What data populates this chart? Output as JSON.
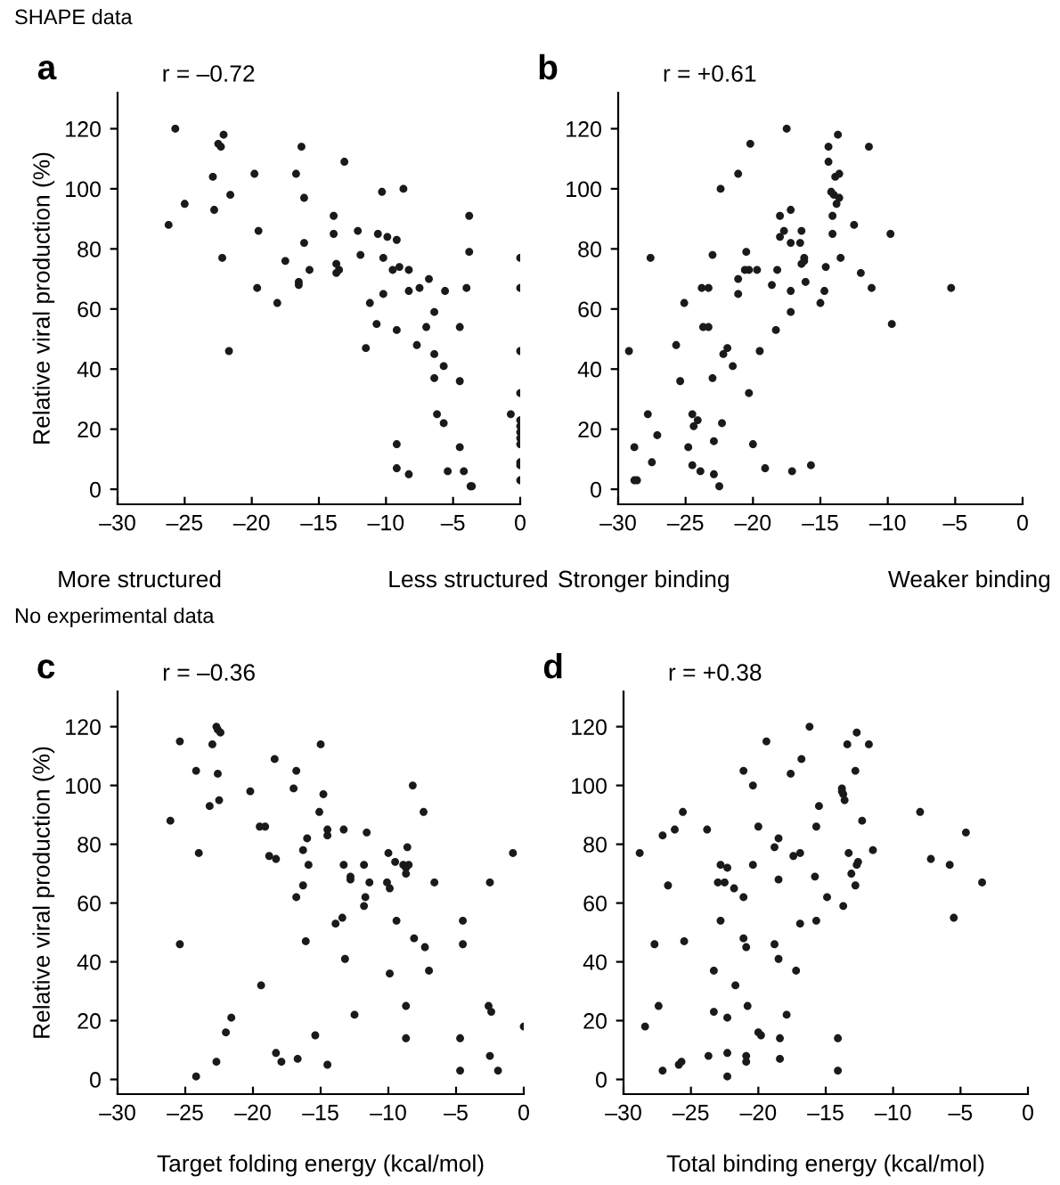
{
  "chart_data": [
    {
      "type": "scatter",
      "title": "a",
      "subtitle": "r = –0.72",
      "ylabel": "Relative viral production (%)",
      "annotations": [
        "SHAPE data",
        "More structured",
        "Less structured"
      ],
      "marker": "circle",
      "grid": false,
      "xlim": [
        -30,
        0
      ],
      "ylim": [
        -5,
        132
      ],
      "xticks": [
        {
          "value": -30,
          "label": "–30"
        },
        {
          "value": -25,
          "label": "–25"
        },
        {
          "value": -20,
          "label": "–20"
        },
        {
          "value": -15,
          "label": "–15"
        },
        {
          "value": -10,
          "label": "–10"
        },
        {
          "value": -5,
          "label": "–5"
        },
        0
      ],
      "yticks": [
        0,
        20,
        40,
        60,
        80,
        100,
        120
      ],
      "series": [
        {
          "color": "#1a1a1a",
          "x": [
            -26.2,
            -25.7,
            -25.0,
            -22.9,
            -22.8,
            -22.5,
            -22.3,
            -22.1,
            -22.2,
            -21.6,
            -21.7,
            -19.8,
            -19.5,
            -19.6,
            -18.1,
            -17.5,
            -16.7,
            -16.5,
            -16.5,
            -16.3,
            -16.1,
            -16.1,
            -15.7,
            -13.1,
            -13.9,
            -13.9,
            -13.7,
            -13.7,
            -13.5,
            -12.1,
            -11.9,
            -11.5,
            -11.2,
            -10.7,
            -10.6,
            -10.3,
            -10.2,
            -10.2,
            -9.9,
            -9.5,
            -9.2,
            -9.0,
            -9.2,
            -9.2,
            -9.2,
            -8.7,
            -8.3,
            -8.3,
            -8.3,
            -7.7,
            -7.5,
            -6.8,
            -7.0,
            -6.4,
            -6.4,
            -6.4,
            -6.2,
            -5.7,
            -5.7,
            -5.6,
            -5.4,
            -4.5,
            -4.5,
            -4.5,
            -4.2,
            -4.0,
            -3.8,
            -3.8,
            -3.7,
            -3.6,
            -0.7,
            0,
            0,
            0,
            0,
            0,
            0,
            0,
            0,
            0,
            0,
            0,
            0
          ],
          "values": [
            88,
            120,
            95,
            104,
            93,
            115,
            114,
            118,
            77,
            98,
            46,
            105,
            86,
            67,
            62,
            76,
            105,
            68,
            69,
            114,
            97,
            82,
            73,
            109,
            91,
            85,
            75,
            72,
            73,
            86,
            78,
            47,
            62,
            55,
            85,
            99,
            77,
            65,
            84,
            73,
            83,
            74,
            53,
            15,
            7,
            100,
            73,
            66,
            5,
            48,
            67,
            70,
            54,
            59,
            45,
            37,
            25,
            41,
            22,
            66,
            6,
            54,
            36,
            14,
            6,
            67,
            91,
            79,
            1,
            1,
            25,
            77,
            67,
            46,
            32,
            23,
            21,
            19,
            17,
            15,
            9,
            8,
            3
          ]
        }
      ]
    },
    {
      "type": "scatter",
      "title": "b",
      "subtitle": "r = +0.61",
      "annotations": [
        "Stronger binding",
        "Weaker binding"
      ],
      "marker": "circle",
      "grid": false,
      "xlim": [
        -30,
        0
      ],
      "ylim": [
        -5,
        132
      ],
      "xticks": [
        {
          "value": -30,
          "label": "–30"
        },
        {
          "value": -25,
          "label": "–25"
        },
        {
          "value": -20,
          "label": "–20"
        },
        {
          "value": -15,
          "label": "–15"
        },
        {
          "value": -10,
          "label": "–10"
        },
        {
          "value": -5,
          "label": "–5"
        },
        0
      ],
      "yticks": [
        0,
        20,
        40,
        60,
        80,
        100,
        120
      ],
      "series": [
        {
          "color": "#1a1a1a",
          "x": [
            -29.2,
            -28.8,
            -28.8,
            -28.6,
            -27.8,
            -27.6,
            -27.5,
            -27.1,
            -25.7,
            -25.4,
            -25.1,
            -24.8,
            -24.5,
            -24.5,
            -24.4,
            -24.1,
            -23.9,
            -23.8,
            -23.3,
            -23.7,
            -23.3,
            -23.0,
            -23.0,
            -22.9,
            -22.9,
            -22.5,
            -22.4,
            -22.3,
            -22.2,
            -21.9,
            -21.5,
            -21.1,
            -21.1,
            -21.1,
            -20.5,
            -20.6,
            -20.3,
            -20.3,
            -20.2,
            -20.0,
            -19.7,
            -19.5,
            -19.1,
            -18.6,
            -18.3,
            -18.2,
            -18.0,
            -18.0,
            -17.7,
            -17.5,
            -17.2,
            -17.2,
            -17.2,
            -17.2,
            -17.1,
            -16.4,
            -16.5,
            -16.2,
            -16.2,
            -16.4,
            -16.1,
            -15.7,
            -15.0,
            -14.7,
            -14.6,
            -14.4,
            -14.4,
            -14.2,
            -14.0,
            -14.1,
            -14.1,
            -13.9,
            -13.6,
            -13.8,
            -13.7,
            -13.6,
            -13.5,
            -12.5,
            -12.0,
            -11.4,
            -11.2,
            -9.8,
            -9.7,
            -5.3
          ],
          "values": [
            46,
            14,
            3,
            3,
            25,
            77,
            9,
            18,
            48,
            36,
            62,
            14,
            25,
            8,
            21,
            23,
            6,
            67,
            67,
            54,
            54,
            78,
            37,
            16,
            5,
            1,
            100,
            22,
            45,
            47,
            41,
            105,
            70,
            65,
            79,
            73,
            73,
            32,
            115,
            15,
            73,
            46,
            7,
            68,
            53,
            73,
            91,
            84,
            86,
            120,
            93,
            82,
            66,
            59,
            6,
            86,
            82,
            77,
            76,
            75,
            69,
            8,
            62,
            66,
            74,
            109,
            114,
            99,
            98,
            91,
            85,
            104,
            105,
            95,
            118,
            97,
            77,
            88,
            72,
            114,
            67,
            85,
            55,
            67
          ]
        }
      ]
    },
    {
      "type": "scatter",
      "title": "c",
      "subtitle": "r = –0.36",
      "xlabel": "Target folding energy (kcal/mol)",
      "ylabel": "Relative viral production (%)",
      "annotations": [
        "No experimental data"
      ],
      "marker": "circle",
      "grid": false,
      "xlim": [
        -30,
        0
      ],
      "ylim": [
        -5,
        132
      ],
      "xticks": [
        {
          "value": -30,
          "label": "–30"
        },
        {
          "value": -25,
          "label": "–25"
        },
        {
          "value": -20,
          "label": "–20"
        },
        {
          "value": -15,
          "label": "–15"
        },
        {
          "value": -10,
          "label": "–10"
        },
        {
          "value": -5,
          "label": "–5"
        },
        0
      ],
      "yticks": [
        0,
        20,
        40,
        60,
        80,
        100,
        120
      ],
      "series": [
        {
          "color": "#1a1a1a",
          "x": [
            -26.1,
            -25.4,
            -25.4,
            -24.2,
            -24.2,
            -24.0,
            -23.2,
            -23.0,
            -22.7,
            -22.6,
            -22.6,
            -22.7,
            -22.4,
            -22.5,
            -22.0,
            -21.6,
            -20.2,
            -19.5,
            -19.1,
            -19.4,
            -18.8,
            -18.3,
            -18.4,
            -18.3,
            -17.9,
            -17.0,
            -16.8,
            -16.8,
            -16.7,
            -16.3,
            -16.3,
            -16.1,
            -16.0,
            -15.9,
            -15.4,
            -15.1,
            -15.0,
            -14.8,
            -14.5,
            -14.5,
            -14.5,
            -13.9,
            -13.4,
            -13.3,
            -13.3,
            -13.2,
            -12.8,
            -12.8,
            -12.5,
            -11.8,
            -11.8,
            -11.7,
            -11.6,
            -11.4,
            -10.0,
            -10.1,
            -9.9,
            -9.9,
            -9.5,
            -9.4,
            -8.9,
            -8.7,
            -8.7,
            -8.6,
            -8.5,
            -8.7,
            -8.7,
            -8.2,
            -8.1,
            -7.4,
            -7.3,
            -7.0,
            -6.6,
            -4.7,
            -4.7,
            -4.5,
            -4.5,
            -2.5,
            -2.6,
            -2.4,
            -2.5,
            -1.9,
            -0.8,
            0
          ],
          "values": [
            88,
            115,
            46,
            105,
            1,
            77,
            93,
            114,
            120,
            119,
            104,
            6,
            118,
            95,
            16,
            21,
            98,
            86,
            86,
            32,
            76,
            75,
            109,
            9,
            6,
            99,
            105,
            62,
            7,
            78,
            66,
            47,
            82,
            73,
            15,
            91,
            114,
            97,
            85,
            83,
            5,
            53,
            55,
            85,
            73,
            41,
            69,
            68,
            22,
            59,
            73,
            62,
            84,
            67,
            77,
            67,
            65,
            36,
            74,
            54,
            73,
            72,
            70,
            79,
            73,
            25,
            14,
            100,
            48,
            91,
            45,
            37,
            67,
            14,
            3,
            54,
            46,
            67,
            25,
            23,
            8,
            3,
            77,
            18
          ]
        }
      ]
    },
    {
      "type": "scatter",
      "title": "d",
      "subtitle": "r = +0.38",
      "xlabel": "Total binding energy (kcal/mol)",
      "marker": "circle",
      "grid": false,
      "xlim": [
        -30,
        0
      ],
      "ylim": [
        -5,
        132
      ],
      "xticks": [
        {
          "value": -30,
          "label": "–30"
        },
        {
          "value": -25,
          "label": "–25"
        },
        {
          "value": -20,
          "label": "–20"
        },
        {
          "value": -15,
          "label": "–15"
        },
        {
          "value": -10,
          "label": "–10"
        },
        {
          "value": -5,
          "label": "–5"
        },
        0
      ],
      "yticks": [
        0,
        20,
        40,
        60,
        80,
        100,
        120
      ],
      "series": [
        {
          "color": "#1a1a1a",
          "x": [
            -28.8,
            -28.4,
            -27.7,
            -27.4,
            -27.1,
            -27.1,
            -26.7,
            -26.2,
            -25.9,
            -25.7,
            -25.6,
            -25.5,
            -23.8,
            -23.7,
            -23.3,
            -23.3,
            -22.8,
            -23.0,
            -22.5,
            -22.8,
            -22.3,
            -22.3,
            -22.3,
            -22.3,
            -21.8,
            -21.7,
            -21.1,
            -21.1,
            -21.1,
            -20.9,
            -20.9,
            -20.9,
            -20.8,
            -20.4,
            -20.4,
            -20.0,
            -20.0,
            -19.8,
            -19.4,
            -18.8,
            -18.8,
            -18.5,
            -18.5,
            -18.5,
            -18.4,
            -18.4,
            -17.9,
            -17.6,
            -17.4,
            -17.2,
            -16.9,
            -16.9,
            -16.8,
            -16.2,
            -15.8,
            -15.7,
            -15.7,
            -15.5,
            -14.9,
            -14.1,
            -14.1,
            -13.8,
            -13.8,
            -13.7,
            -13.7,
            -13.6,
            -13.4,
            -13.3,
            -13.1,
            -12.8,
            -12.8,
            -12.7,
            -12.6,
            -12.7,
            -12.3,
            -11.8,
            -11.5,
            -8.0,
            -7.2,
            -5.8,
            -5.5,
            -4.6,
            -3.4
          ],
          "values": [
            77,
            18,
            46,
            25,
            83,
            3,
            66,
            85,
            5,
            6,
            91,
            47,
            85,
            8,
            37,
            23,
            73,
            67,
            67,
            54,
            21,
            9,
            72,
            1,
            65,
            32,
            48,
            105,
            62,
            45,
            8,
            6,
            25,
            100,
            73,
            86,
            16,
            15,
            115,
            79,
            46,
            82,
            68,
            41,
            14,
            7,
            22,
            104,
            76,
            37,
            77,
            53,
            109,
            120,
            69,
            86,
            54,
            93,
            62,
            14,
            3,
            99,
            98,
            97,
            59,
            95,
            114,
            77,
            70,
            66,
            105,
            73,
            74,
            118,
            88,
            114,
            78,
            91,
            75,
            73,
            55,
            84,
            67
          ]
        }
      ]
    }
  ]
}
